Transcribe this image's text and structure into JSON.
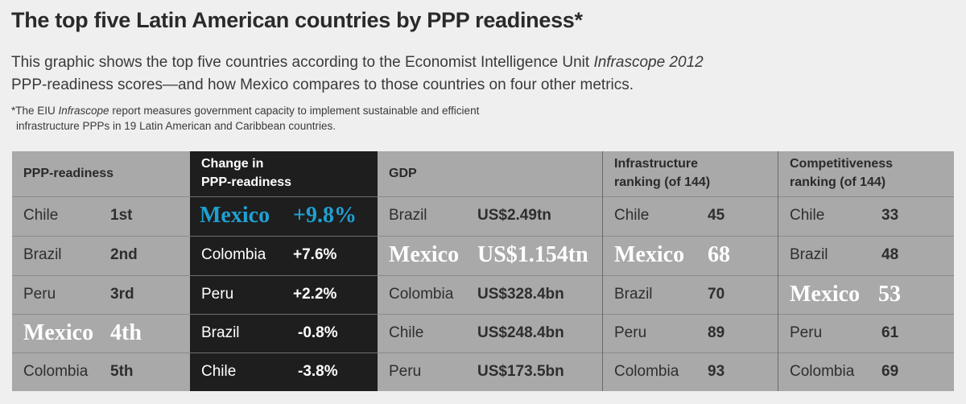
{
  "title": "The top five Latin American countries by PPP readiness*",
  "description": {
    "line1_pre": "This graphic shows the top five countries according to the Economist Intelligence Unit ",
    "line1_italic": "Infrascope 2012",
    "line2": "PPP-readiness scores—and how Mexico compares to those countries on four other metrics."
  },
  "footnote": {
    "pre": "*The EIU ",
    "italic": "Infrascope",
    "post": " report measures government capacity to implement sustainable and efficient",
    "line2": "infrastructure PPPs in 19 Latin American and Caribbean countries."
  },
  "table": {
    "columns": [
      {
        "header": [
          "PPP-readiness"
        ],
        "rows": [
          {
            "name": "Chile",
            "value": "1st"
          },
          {
            "name": "Brazil",
            "value": "2nd"
          },
          {
            "name": "Peru",
            "value": "3rd"
          },
          {
            "name": "Mexico",
            "value": "4th",
            "highlight": true
          },
          {
            "name": "Colombia",
            "value": "5th"
          }
        ]
      },
      {
        "header": [
          "Change in",
          "PPP-readiness"
        ],
        "rows": [
          {
            "name": "Mexico",
            "value": "+9.8%",
            "highlight": true
          },
          {
            "name": "Colombia",
            "value": "+7.6%"
          },
          {
            "name": "Peru",
            "value": "+2.2%"
          },
          {
            "name": "Brazil",
            "value": "-0.8%"
          },
          {
            "name": "Chile",
            "value": "-3.8%"
          }
        ]
      },
      {
        "header": [
          "GDP"
        ],
        "rows": [
          {
            "name": "Brazil",
            "value": "US$2.49tn"
          },
          {
            "name": "Mexico",
            "value": "US$1.154tn",
            "highlight": true
          },
          {
            "name": "Colombia",
            "value": "US$328.4bn"
          },
          {
            "name": "Chile",
            "value": "US$248.4bn"
          },
          {
            "name": "Peru",
            "value": "US$173.5bn"
          }
        ]
      },
      {
        "header": [
          "Infrastructure",
          "ranking (of 144)"
        ],
        "rows": [
          {
            "name": "Chile",
            "value": "45"
          },
          {
            "name": "Mexico",
            "value": "68",
            "highlight": true
          },
          {
            "name": "Brazil",
            "value": "70"
          },
          {
            "name": "Peru",
            "value": "89"
          },
          {
            "name": "Colombia",
            "value": "93"
          }
        ]
      },
      {
        "header": [
          "Competitiveness",
          "ranking (of 144)"
        ],
        "rows": [
          {
            "name": "Chile",
            "value": "33"
          },
          {
            "name": "Brazil",
            "value": "48"
          },
          {
            "name": "Mexico",
            "value": "53",
            "highlight": true
          },
          {
            "name": "Peru",
            "value": "61"
          },
          {
            "name": "Colombia",
            "value": "69"
          }
        ]
      }
    ]
  },
  "colors": {
    "background": "#efefef",
    "table_bg": "#a9a9a9",
    "dark_column": "#1e1e1e",
    "highlight_white": "#ffffff",
    "highlight_blue": "#1fa0d2"
  }
}
